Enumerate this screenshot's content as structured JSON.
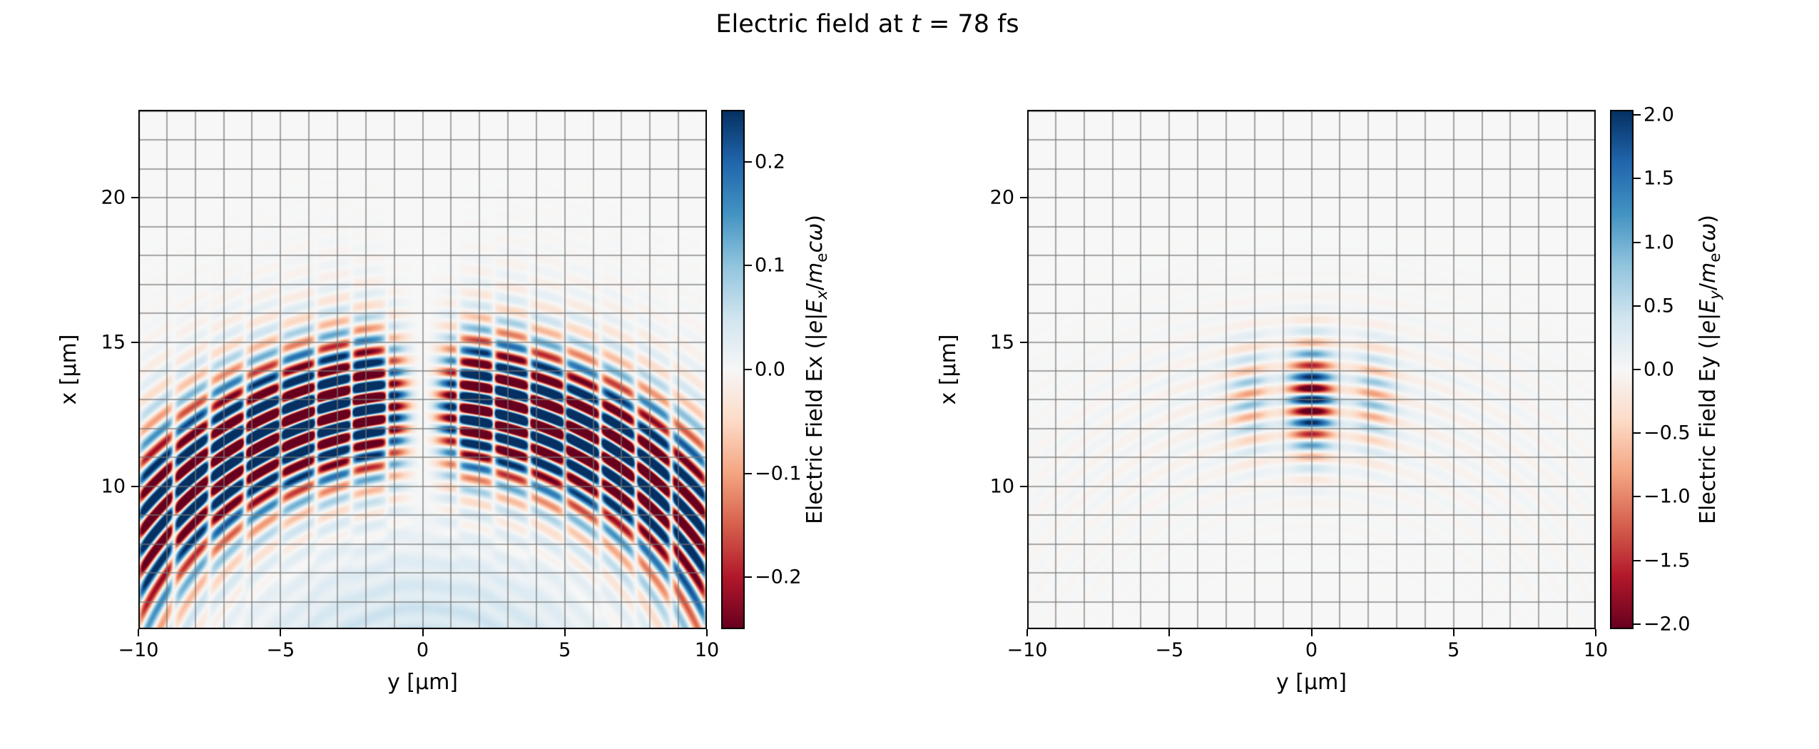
{
  "figure": {
    "background": "#ffffff",
    "title_rich": [
      {
        "t": "Electric field at "
      },
      {
        "t": "t",
        "i": true
      },
      {
        "t": " = 78 fs"
      }
    ]
  },
  "style": {
    "grid_color": "rgba(120,120,120,0.65)",
    "spine_color": "#000000",
    "tick_color": "#000000",
    "text_color": "#000000",
    "plot_zero_color": "#f7f7f7"
  },
  "colormap_rdbu": [
    "#67001f",
    "#b2182b",
    "#d6604d",
    "#f4a582",
    "#fddbc7",
    "#f7f7f7",
    "#d1e5f0",
    "#92c5de",
    "#4393c3",
    "#2166ac",
    "#053061"
  ],
  "chart_data": {
    "type": "heatmap",
    "title": "Electric field at t = 78 fs",
    "time_fs": 78,
    "colormap": "RdBu",
    "subplots": [
      {
        "name": "Ex",
        "xlabel": "y [μm]",
        "ylabel": "x [μm]",
        "xlim": [
          -10,
          10
        ],
        "ylim": [
          5.05,
          23.05
        ],
        "xtick_values": [
          -10,
          -5,
          0,
          5,
          10
        ],
        "xtick_labels": [
          "−10",
          "−5",
          "0",
          "5",
          "10"
        ],
        "ytick_values": [
          10,
          15,
          20
        ],
        "ytick_labels": [
          "10",
          "15",
          "20"
        ],
        "grid_spacing": 1,
        "clim": [
          -0.25,
          0.25
        ],
        "cbar_tick_values": [
          0.2,
          0.1,
          0.0,
          -0.1,
          -0.2
        ],
        "cbar_tick_labels": [
          "0.2",
          "0.1",
          "0.0",
          "−0.1",
          "−0.2"
        ],
        "cbar_label": "Electric Field Ex (|e|Ex/mecω)",
        "cbar_label_rich": [
          {
            "t": "Electric Field Ex (|"
          },
          {
            "t": "e",
            "i": true
          },
          {
            "t": "|"
          },
          {
            "t": "E",
            "i": true
          },
          {
            "t": "x",
            "i": true,
            "sub": true
          },
          {
            "t": "/"
          },
          {
            "t": "m",
            "i": true
          },
          {
            "t": "e",
            "sub": true
          },
          {
            "t": "c",
            "i": true
          },
          {
            "t": "ω",
            "i": true
          },
          {
            "t": ")"
          }
        ],
        "description": "Longitudinal laser field Ex: antisymmetric red/blue checkerboard lobes about y=0 along curved wavefronts (rings of radius ≈12.5 μm centered near y=0, x≈0.5 μm), wavelength ≈0.8 μm, pattern strongest for x≈9–16 μm and extending along the arcs to the lower corners; peak |Ex|≈0.25; faint positive (light blue) haze with weak rings below x≈8 μm.",
        "field_model": {
          "type": "ex",
          "focus_x": 0.5,
          "focus_y": 0.0,
          "r0": 12.5,
          "wavelength": 0.8,
          "sigma_r": 2.0,
          "amp": 0.55,
          "theta_null": 0.09,
          "theta_width": 1.35,
          "col_period": 2.5,
          "tail_amp": 0.05,
          "tail_sigma": 4.0,
          "haze_amp": 0.07,
          "haze_radius": 7.2,
          "haze_ripple": 0.25
        }
      },
      {
        "name": "Ey",
        "xlabel": "y [μm]",
        "ylabel": "x [μm]",
        "xlim": [
          -10,
          10
        ],
        "ylim": [
          5.05,
          23.05
        ],
        "xtick_values": [
          -10,
          -5,
          0,
          5,
          10
        ],
        "xtick_labels": [
          "−10",
          "−5",
          "0",
          "5",
          "10"
        ],
        "ytick_values": [
          10,
          15,
          20
        ],
        "ytick_labels": [
          "10",
          "15",
          "20"
        ],
        "grid_spacing": 1,
        "clim": [
          -2.04,
          2.04
        ],
        "cbar_tick_values": [
          2.0,
          1.5,
          1.0,
          0.5,
          0.0,
          -0.5,
          -1.0,
          -1.5,
          -2.0
        ],
        "cbar_tick_labels": [
          "2.0",
          "1.5",
          "1.0",
          "0.5",
          "0.0",
          "−0.5",
          "−1.0",
          "−1.5",
          "−2.0"
        ],
        "cbar_label": "Electric Field Ey (|e|Ey/mecω)",
        "cbar_label_rich": [
          {
            "t": "Electric Field Ey (|"
          },
          {
            "t": "e",
            "i": true
          },
          {
            "t": "|"
          },
          {
            "t": "E",
            "i": true
          },
          {
            "t": "y",
            "i": true,
            "sub": true
          },
          {
            "t": "/"
          },
          {
            "t": "m",
            "i": true
          },
          {
            "t": "e",
            "sub": true
          },
          {
            "t": "c",
            "i": true
          },
          {
            "t": "ω",
            "i": true
          },
          {
            "t": ")"
          }
        ],
        "description": "Transverse laser field Ey: compact pulse centered at y≈0, x≈10–16 μm made of alternating red/blue horizontal stripes (wavelength ≈0.8 μm) following slightly curved wavefronts, with vertical intensity columns (period ≈2.5 μm); peak |Ey|≈2; very faint concentric arcs of the same rings extend toward the lower corners.",
        "field_model": {
          "type": "ey",
          "focus_x": 0.5,
          "focus_y": 0.0,
          "r0": 12.5,
          "wavelength": 0.8,
          "sigma_r": 1.7,
          "amp": 2.5,
          "theta_main": 0.17,
          "col_period": 2.5,
          "col_base": 0.55,
          "col_amp": 0.45,
          "wide_amp": 0.12,
          "theta_wide": 0.9,
          "tail_sigma": 3.5
        }
      }
    ]
  }
}
